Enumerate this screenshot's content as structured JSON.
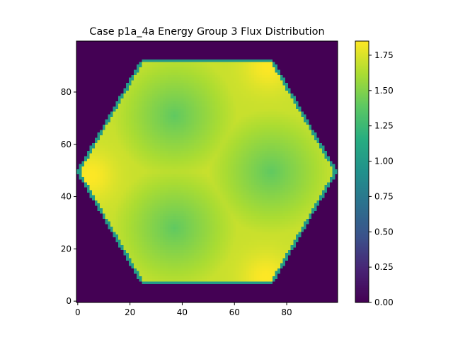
{
  "chart_data": {
    "type": "heatmap",
    "title": "Case p1a_4a Energy Group 3 Flux Distribution",
    "xlabel": "",
    "ylabel": "",
    "grid_shape": [
      100,
      100
    ],
    "x_range": [
      -0.5,
      99.5
    ],
    "y_range": [
      -0.5,
      99.5
    ],
    "xticks": [
      0,
      20,
      40,
      60,
      80
    ],
    "yticks": [
      0,
      20,
      40,
      60,
      80
    ],
    "colormap": "viridis",
    "colorbar": {
      "vmin": 0.0,
      "vmax": 1.85,
      "ticks": [
        0.0,
        0.25,
        0.5,
        0.75,
        1.0,
        1.25,
        1.5,
        1.75
      ],
      "tick_labels": [
        "0.00",
        "0.25",
        "0.50",
        "0.75",
        "1.00",
        "1.25",
        "1.50",
        "1.75"
      ]
    },
    "geometry": {
      "shape": "hexagon",
      "center": [
        49.5,
        49.5
      ],
      "vertex_radius": 50,
      "sub_assembly_centers": [
        [
          37,
          28
        ],
        [
          37,
          71
        ],
        [
          74,
          49.5
        ]
      ]
    },
    "levels": {
      "outside": 0.0,
      "hexagon_edge": 1.0,
      "sub_assembly_center": 1.4,
      "peak_hotspot": 1.85
    },
    "hotspots": [
      [
        5,
        48
      ],
      [
        73,
        90
      ],
      [
        72,
        9
      ]
    ]
  }
}
